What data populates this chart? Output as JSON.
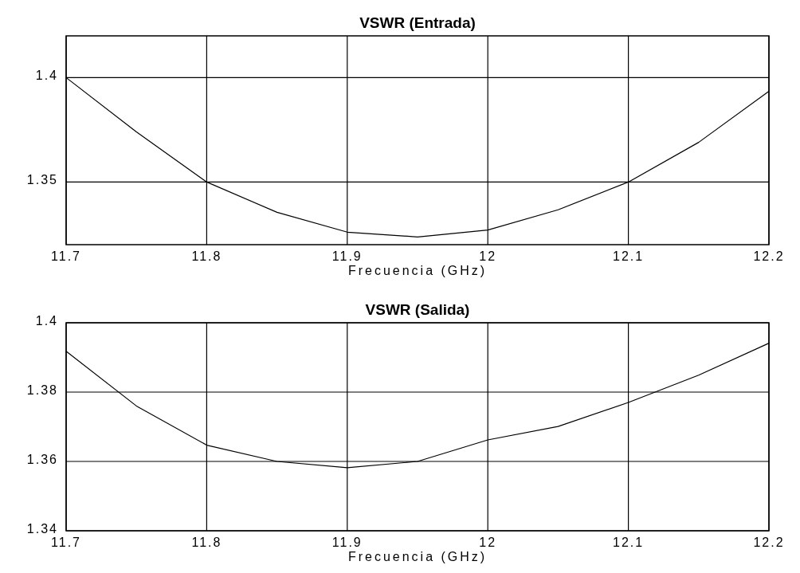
{
  "chart_data": [
    {
      "type": "line",
      "title": "VSWR (Entrada)",
      "xlabel": "Frecuencia (GHz)",
      "x": [
        11.7,
        11.75,
        11.8,
        11.85,
        11.9,
        11.95,
        12.0,
        12.05,
        12.1,
        12.15,
        12.2
      ],
      "series": [
        {
          "color": "#000000",
          "values": [
            1.4,
            1.374,
            1.35,
            1.3355,
            1.326,
            1.3237,
            1.327,
            1.3367,
            1.35,
            1.369,
            1.3935
          ]
        }
      ],
      "xlim": [
        11.7,
        12.2
      ],
      "xticks": [
        11.7,
        11.8,
        11.9,
        12,
        12.1,
        12.2
      ],
      "ylim": [
        1.32,
        1.42
      ],
      "yticks": [
        1.35,
        1.4
      ],
      "grid": true
    },
    {
      "type": "line",
      "title": "VSWR (Salida)",
      "xlabel": "Frecuencia (GHz)",
      "x": [
        11.7,
        11.75,
        11.8,
        11.85,
        11.9,
        11.95,
        12.0,
        12.05,
        12.1,
        12.15,
        12.2
      ],
      "series": [
        {
          "color": "#000000",
          "values": [
            1.3918,
            1.376,
            1.3647,
            1.36,
            1.3582,
            1.36,
            1.3662,
            1.3701,
            1.377,
            1.3849,
            1.3941
          ]
        }
      ],
      "xlim": [
        11.7,
        12.2
      ],
      "xticks": [
        11.7,
        11.8,
        11.9,
        12,
        12.1,
        12.2
      ],
      "ylim": [
        1.34,
        1.4
      ],
      "yticks": [
        1.34,
        1.36,
        1.38,
        1.4
      ],
      "grid": true
    }
  ]
}
